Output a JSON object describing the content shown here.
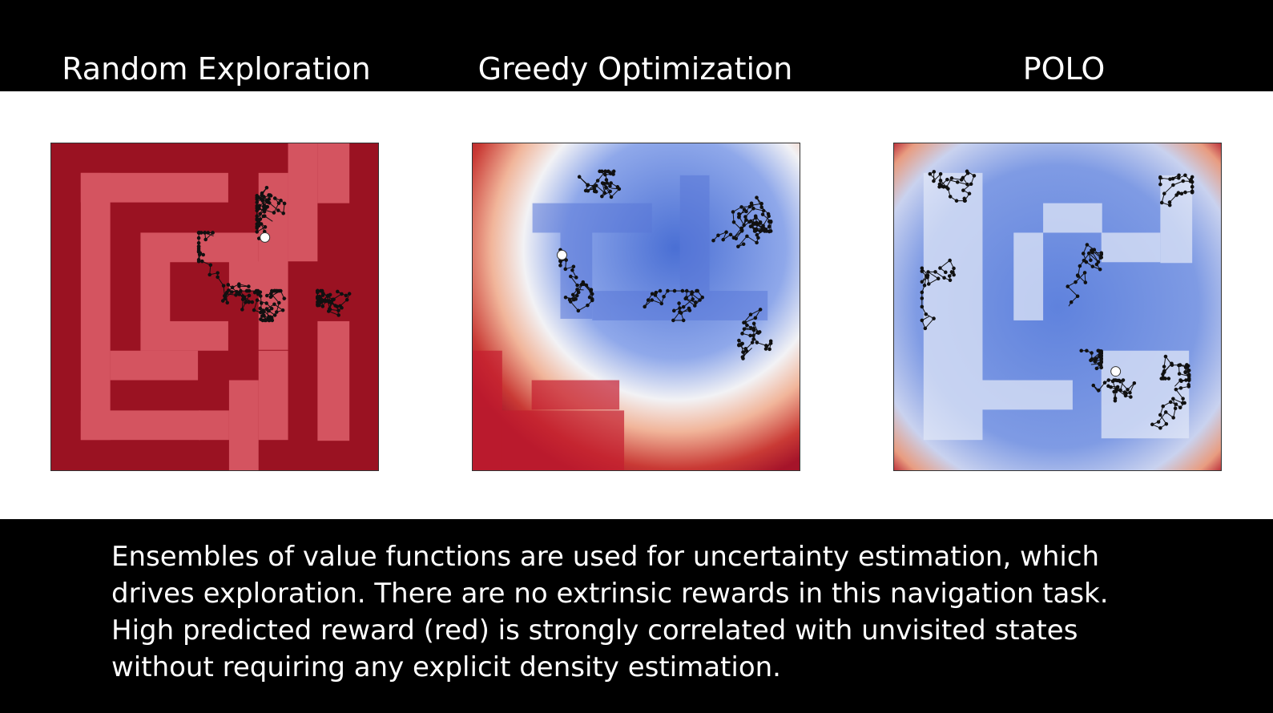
{
  "titles": {
    "left": "Random Exploration",
    "middle": "Greedy Optimization",
    "right": "POLO"
  },
  "caption": {
    "line1": "Ensembles of value functions are used for uncertainty estimation, which",
    "line2": "drives exploration. There are no extrinsic rewards in this navigation task.",
    "line3": "High predicted reward (red) is strongly correlated with unvisited states",
    "line4": "without requiring any explicit density estimation."
  },
  "colors": {
    "maze_wall": "#9a1222",
    "maze_path": "#d45460",
    "value_high": "#b2182b",
    "value_mid": "#f7f7f7",
    "value_low": "#4a6fd4",
    "trajectory": "#111111",
    "agent": "#ffffff"
  },
  "panels": [
    {
      "name": "random-exploration-maze",
      "view": "raw-maze"
    },
    {
      "name": "greedy-optimization-maze",
      "view": "value-heatmap"
    },
    {
      "name": "polo-maze",
      "view": "value-heatmap"
    }
  ]
}
